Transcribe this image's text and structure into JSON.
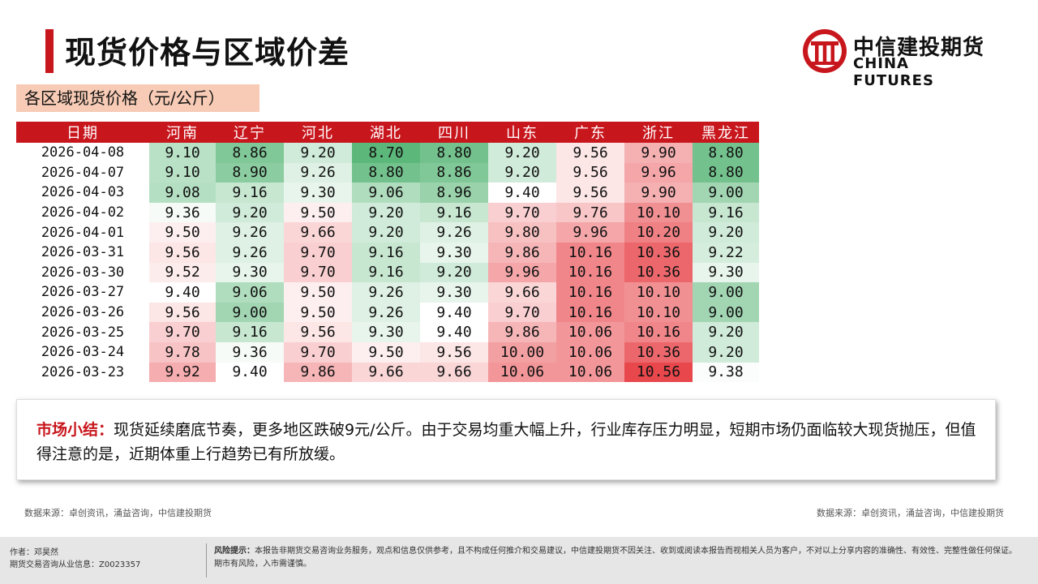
{
  "header": {
    "title": "现货价格与区域价差",
    "brand_cn": "中信建投期货",
    "brand_en": "CHINA FUTURES"
  },
  "subtitle": "各区域现货价格（元/公斤）",
  "table": {
    "headers": [
      "日期",
      "河南",
      "辽宁",
      "河北",
      "湖北",
      "四川",
      "山东",
      "广东",
      "浙江",
      "黑龙江"
    ],
    "rows": [
      [
        "2026-04-08",
        "9.10",
        "8.86",
        "9.20",
        "8.70",
        "8.80",
        "9.20",
        "9.56",
        "9.90",
        "8.80"
      ],
      [
        "2026-04-07",
        "9.10",
        "8.90",
        "9.26",
        "8.80",
        "8.86",
        "9.20",
        "9.56",
        "9.96",
        "8.80"
      ],
      [
        "2026-04-03",
        "9.08",
        "9.16",
        "9.30",
        "9.06",
        "8.96",
        "9.40",
        "9.56",
        "9.90",
        "9.00"
      ],
      [
        "2026-04-02",
        "9.36",
        "9.20",
        "9.50",
        "9.20",
        "9.16",
        "9.70",
        "9.76",
        "10.10",
        "9.16"
      ],
      [
        "2026-04-01",
        "9.50",
        "9.26",
        "9.66",
        "9.20",
        "9.26",
        "9.80",
        "9.96",
        "10.20",
        "9.20"
      ],
      [
        "2026-03-31",
        "9.56",
        "9.26",
        "9.70",
        "9.16",
        "9.30",
        "9.86",
        "10.16",
        "10.36",
        "9.22"
      ],
      [
        "2026-03-30",
        "9.52",
        "9.30",
        "9.70",
        "9.16",
        "9.20",
        "9.96",
        "10.16",
        "10.36",
        "9.30"
      ],
      [
        "2026-03-27",
        "9.40",
        "9.06",
        "9.50",
        "9.26",
        "9.30",
        "9.66",
        "10.16",
        "10.10",
        "9.00"
      ],
      [
        "2026-03-26",
        "9.56",
        "9.00",
        "9.50",
        "9.26",
        "9.40",
        "9.70",
        "10.16",
        "10.10",
        "9.00"
      ],
      [
        "2026-03-25",
        "9.70",
        "9.16",
        "9.56",
        "9.30",
        "9.40",
        "9.86",
        "10.06",
        "10.16",
        "9.20"
      ],
      [
        "2026-03-24",
        "9.78",
        "9.36",
        "9.70",
        "9.50",
        "9.56",
        "10.00",
        "10.06",
        "10.36",
        "9.20"
      ],
      [
        "2026-03-23",
        "9.92",
        "9.40",
        "9.86",
        "9.66",
        "9.66",
        "10.06",
        "10.06",
        "10.56",
        "9.38"
      ]
    ],
    "colors": {
      "header_bg": "#c8161d",
      "low": "#5cb87a",
      "mid": "#ffffff",
      "high": "#e8474c"
    }
  },
  "summary": {
    "label": "市场小结：",
    "text": "现货延续磨底节奏，更多地区跌破9元/公斤。由于交易均重大幅上升，行业库存压力明显，短期市场仍面临较大现货抛压，但值得注意的是，近期体重上行趋势已有所放缓。"
  },
  "sources": {
    "left": "数据来源：卓创资讯，涌益咨询，中信建投期货",
    "right": "数据来源：卓创资讯，涌益咨询，中信建投期货"
  },
  "footer": {
    "author_line1": "作者：邓昊然",
    "author_line2": "期货交易咨询从业信息：Z0023357",
    "risk_label": "风险提示：",
    "risk_text": "本报告非期货交易咨询业务服务，观点和信息仅供参考，且不构成任何推介和交易建议，中信建投期货不因关注、收到或阅读本报告而视相关人员为客户，不对以上分享内容的准确性、有效性、完整性做任何保证。期市有风险，入市需谨慎。"
  }
}
